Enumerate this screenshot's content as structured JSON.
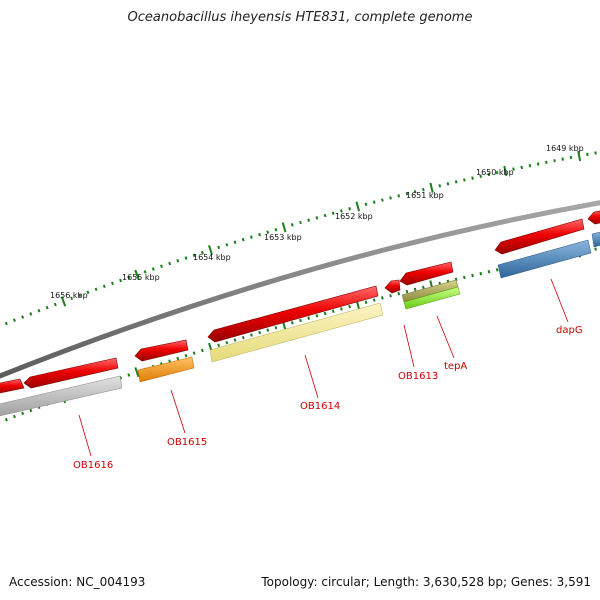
{
  "title": "Oceanobacillus iheyensis HTE831, complete genome",
  "accession_label": "Accession: NC_004193",
  "summary_label": "Topology: circular; Length: 3,630,528 bp; Genes: 3,591",
  "scale_labels": [
    "1649 kbp",
    "1650 kbp",
    "1651 kbp",
    "1652 kbp",
    "1653 kbp",
    "1654 kbp",
    "1655 kbp",
    "1656 kbp"
  ],
  "gene_labels": [
    "dapG",
    "tepA",
    "OB1613",
    "OB1614",
    "OB1615",
    "OB1616"
  ],
  "colors": {
    "backbone": "#7a7a7a",
    "tick": "#1a7f1a",
    "forward_gene": "#ee0000",
    "label": "#cc0000",
    "OB1616_cds": "#b8b8b8",
    "OB1615_cds": "#ff9900",
    "OB1614_cds": "#f2e896",
    "tepA_cds": "#b5b060",
    "tepA_cds2": "#99ee33",
    "dapG_cds": "#4a82b8"
  }
}
